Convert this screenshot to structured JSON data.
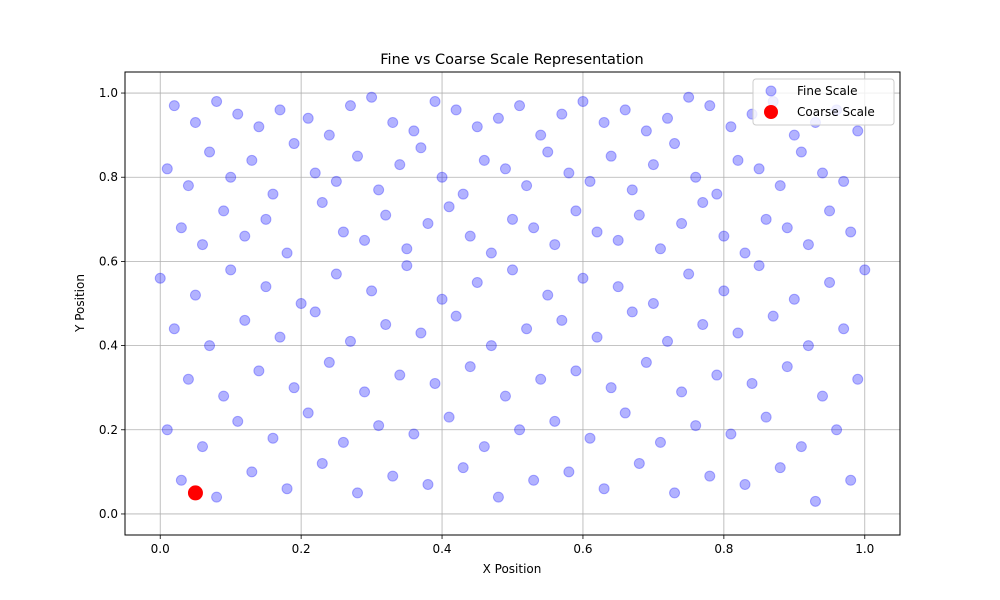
{
  "chart_data": {
    "type": "scatter",
    "title": "Fine vs Coarse Scale Representation",
    "xlabel": "X Position",
    "ylabel": "Y Position",
    "xlim": [
      -0.05,
      1.05
    ],
    "ylim": [
      -0.05,
      1.05
    ],
    "xticks": [
      "0.0",
      "0.2",
      "0.4",
      "0.6",
      "0.8",
      "1.0"
    ],
    "yticks": [
      "0.0",
      "0.2",
      "0.4",
      "0.6",
      "0.8",
      "1.0"
    ],
    "grid": true,
    "legend_position": "top-right",
    "series": [
      {
        "name": "Fine Scale",
        "color": "#0000ff",
        "alpha": 0.3,
        "marker": "circle",
        "x": [
          0.02,
          0.05,
          0.08,
          0.11,
          0.14,
          0.17,
          0.21,
          0.24,
          0.27,
          0.3,
          0.33,
          0.36,
          0.39,
          0.42,
          0.45,
          0.48,
          0.51,
          0.54,
          0.57,
          0.6,
          0.63,
          0.66,
          0.69,
          0.72,
          0.75,
          0.78,
          0.81,
          0.84,
          0.87,
          0.9,
          0.93,
          0.96,
          0.99,
          0.01,
          0.04,
          0.07,
          0.1,
          0.13,
          0.16,
          0.19,
          0.22,
          0.25,
          0.28,
          0.31,
          0.34,
          0.37,
          0.4,
          0.43,
          0.46,
          0.49,
          0.52,
          0.55,
          0.58,
          0.61,
          0.64,
          0.67,
          0.7,
          0.73,
          0.76,
          0.79,
          0.82,
          0.85,
          0.88,
          0.91,
          0.94,
          0.97,
          0.03,
          0.06,
          0.09,
          0.12,
          0.15,
          0.18,
          0.23,
          0.26,
          0.29,
          0.32,
          0.35,
          0.38,
          0.41,
          0.44,
          0.47,
          0.5,
          0.53,
          0.56,
          0.59,
          0.62,
          0.65,
          0.68,
          0.71,
          0.74,
          0.77,
          0.8,
          0.83,
          0.86,
          0.89,
          0.92,
          0.95,
          0.98,
          0.0,
          0.05,
          0.1,
          0.15,
          0.2,
          0.25,
          0.3,
          0.35,
          0.4,
          0.45,
          0.5,
          0.55,
          0.6,
          0.65,
          0.7,
          0.75,
          0.8,
          0.85,
          0.9,
          0.95,
          1.0,
          0.02,
          0.07,
          0.12,
          0.17,
          0.22,
          0.27,
          0.32,
          0.37,
          0.42,
          0.47,
          0.52,
          0.57,
          0.62,
          0.67,
          0.72,
          0.77,
          0.82,
          0.87,
          0.92,
          0.97,
          0.04,
          0.09,
          0.14,
          0.19,
          0.24,
          0.29,
          0.34,
          0.39,
          0.44,
          0.49,
          0.54,
          0.59,
          0.64,
          0.69,
          0.74,
          0.79,
          0.84,
          0.89,
          0.94,
          0.99,
          0.01,
          0.06,
          0.11,
          0.16,
          0.21,
          0.26,
          0.31,
          0.36,
          0.41,
          0.46,
          0.51,
          0.56,
          0.61,
          0.66,
          0.71,
          0.76,
          0.81,
          0.86,
          0.91,
          0.96,
          0.03,
          0.08,
          0.13,
          0.18,
          0.23,
          0.28,
          0.33,
          0.38,
          0.43,
          0.48,
          0.53,
          0.58,
          0.63,
          0.68,
          0.73,
          0.78,
          0.83,
          0.88,
          0.93,
          0.98
        ],
        "y": [
          0.97,
          0.93,
          0.98,
          0.95,
          0.92,
          0.96,
          0.94,
          0.9,
          0.97,
          0.99,
          0.93,
          0.91,
          0.98,
          0.96,
          0.92,
          0.94,
          0.97,
          0.9,
          0.95,
          0.98,
          0.93,
          0.96,
          0.91,
          0.94,
          0.99,
          0.97,
          0.92,
          0.95,
          0.98,
          0.9,
          0.93,
          0.96,
          0.91,
          0.82,
          0.78,
          0.86,
          0.8,
          0.84,
          0.76,
          0.88,
          0.81,
          0.79,
          0.85,
          0.77,
          0.83,
          0.87,
          0.8,
          0.76,
          0.84,
          0.82,
          0.78,
          0.86,
          0.81,
          0.79,
          0.85,
          0.77,
          0.83,
          0.88,
          0.8,
          0.76,
          0.84,
          0.82,
          0.78,
          0.86,
          0.81,
          0.79,
          0.68,
          0.64,
          0.72,
          0.66,
          0.7,
          0.62,
          0.74,
          0.67,
          0.65,
          0.71,
          0.63,
          0.69,
          0.73,
          0.66,
          0.62,
          0.7,
          0.68,
          0.64,
          0.72,
          0.67,
          0.65,
          0.71,
          0.63,
          0.69,
          0.74,
          0.66,
          0.62,
          0.7,
          0.68,
          0.64,
          0.72,
          0.67,
          0.56,
          0.52,
          0.58,
          0.54,
          0.5,
          0.57,
          0.53,
          0.59,
          0.51,
          0.55,
          0.58,
          0.52,
          0.56,
          0.54,
          0.5,
          0.57,
          0.53,
          0.59,
          0.51,
          0.55,
          0.58,
          0.44,
          0.4,
          0.46,
          0.42,
          0.48,
          0.41,
          0.45,
          0.43,
          0.47,
          0.4,
          0.44,
          0.46,
          0.42,
          0.48,
          0.41,
          0.45,
          0.43,
          0.47,
          0.4,
          0.44,
          0.32,
          0.28,
          0.34,
          0.3,
          0.36,
          0.29,
          0.33,
          0.31,
          0.35,
          0.28,
          0.32,
          0.34,
          0.3,
          0.36,
          0.29,
          0.33,
          0.31,
          0.35,
          0.28,
          0.32,
          0.2,
          0.16,
          0.22,
          0.18,
          0.24,
          0.17,
          0.21,
          0.19,
          0.23,
          0.16,
          0.2,
          0.22,
          0.18,
          0.24,
          0.17,
          0.21,
          0.19,
          0.23,
          0.16,
          0.2,
          0.08,
          0.04,
          0.1,
          0.06,
          0.12,
          0.05,
          0.09,
          0.07,
          0.11,
          0.04,
          0.08,
          0.1,
          0.06,
          0.12,
          0.05,
          0.09,
          0.07,
          0.11,
          0.03,
          0.08
        ]
      },
      {
        "name": "Coarse Scale",
        "color": "#ff0000",
        "alpha": 1.0,
        "marker": "circle",
        "x": [
          0.05
        ],
        "y": [
          0.05
        ]
      }
    ]
  }
}
